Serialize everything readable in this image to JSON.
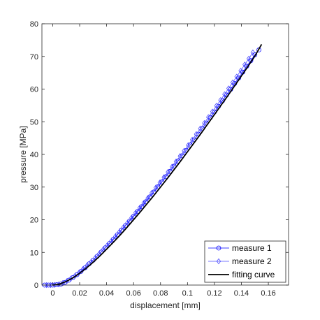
{
  "chart_data": {
    "type": "line",
    "xlabel": "displacement [mm]",
    "ylabel": "pressure [MPa]",
    "xlim": [
      -0.008,
      0.175
    ],
    "ylim": [
      0,
      80
    ],
    "x_ticks": [
      0,
      0.02,
      0.04,
      0.06,
      0.08,
      0.1,
      0.12,
      0.14,
      0.16
    ],
    "x_tick_labels": [
      "0",
      "0.02",
      "0.04",
      "0.06",
      "0.08",
      "0.1",
      "0.12",
      "0.14",
      "0.16"
    ],
    "y_ticks": [
      0,
      10,
      20,
      30,
      40,
      50,
      60,
      70,
      80
    ],
    "y_tick_labels": [
      "0",
      "10",
      "20",
      "30",
      "40",
      "50",
      "60",
      "70",
      "80"
    ],
    "grid": false,
    "legend_position": "bottom-right",
    "series": [
      {
        "name": "measure 1",
        "marker": "circle",
        "color": "#0000ff",
        "x": [
          -0.006,
          -0.003,
          0,
          0.003,
          0.006,
          0.009,
          0.012,
          0.015,
          0.018,
          0.021,
          0.024,
          0.027,
          0.03,
          0.033,
          0.036,
          0.039,
          0.042,
          0.045,
          0.048,
          0.051,
          0.054,
          0.057,
          0.06,
          0.063,
          0.066,
          0.069,
          0.072,
          0.075,
          0.078,
          0.081,
          0.084,
          0.087,
          0.09,
          0.093,
          0.096,
          0.099,
          0.102,
          0.105,
          0.108,
          0.111,
          0.114,
          0.117,
          0.12,
          0.123,
          0.126,
          0.129,
          0.132,
          0.135,
          0.138,
          0.141,
          0.144,
          0.147,
          0.15,
          0.153
        ],
        "y": [
          0,
          0,
          0,
          0.1,
          0.3,
          0.8,
          1.5,
          2.3,
          3.2,
          4.2,
          5.3,
          6.5,
          7.6,
          8.8,
          10.1,
          11.4,
          12.7,
          14.0,
          15.4,
          16.8,
          18.2,
          19.6,
          21.0,
          22.5,
          24.0,
          25.5,
          27.0,
          28.5,
          30.1,
          31.6,
          33.2,
          34.8,
          36.4,
          38.0,
          39.6,
          41.2,
          42.9,
          44.5,
          46.2,
          47.9,
          49.6,
          51.3,
          53.0,
          54.7,
          56.4,
          58.2,
          59.9,
          61.7,
          63.4,
          65.2,
          67.0,
          68.7,
          70.5,
          72.0
        ]
      },
      {
        "name": "measure 2",
        "marker": "diamond",
        "color": "#4d4dff",
        "x": [
          -0.0045,
          -0.0015,
          0.0015,
          0.0045,
          0.0075,
          0.0105,
          0.0135,
          0.0165,
          0.0195,
          0.0225,
          0.0255,
          0.0285,
          0.0315,
          0.0345,
          0.0375,
          0.0405,
          0.0435,
          0.0465,
          0.0495,
          0.0525,
          0.0555,
          0.0585,
          0.0615,
          0.0645,
          0.0675,
          0.0705,
          0.0735,
          0.0765,
          0.0795,
          0.0825,
          0.0855,
          0.0885,
          0.0915,
          0.0945,
          0.0975,
          0.1005,
          0.1035,
          0.1065,
          0.1095,
          0.1125,
          0.1155,
          0.1185,
          0.1215,
          0.1245,
          0.1275,
          0.1305,
          0.1335,
          0.1365,
          0.1395,
          0.1425,
          0.1455,
          0.1485
        ],
        "y": [
          0,
          0,
          0.05,
          0.2,
          0.6,
          1.2,
          2.0,
          2.8,
          3.8,
          4.9,
          6.0,
          7.1,
          8.3,
          9.6,
          10.9,
          12.2,
          13.5,
          14.9,
          16.3,
          17.7,
          19.1,
          20.6,
          22.1,
          23.6,
          25.1,
          26.6,
          28.2,
          29.8,
          31.4,
          33.0,
          34.6,
          36.2,
          37.8,
          39.5,
          41.1,
          42.8,
          44.5,
          46.2,
          47.9,
          49.6,
          51.4,
          53.1,
          54.9,
          56.6,
          58.4,
          60.2,
          62.0,
          63.8,
          65.6,
          67.5,
          69.3,
          71.2
        ]
      },
      {
        "name": "fitting curve",
        "marker": "none",
        "color": "#000000",
        "x": [
          0,
          0.005,
          0.01,
          0.015,
          0.02,
          0.025,
          0.03,
          0.035,
          0.04,
          0.045,
          0.05,
          0.055,
          0.06,
          0.065,
          0.07,
          0.075,
          0.08,
          0.085,
          0.09,
          0.095,
          0.1,
          0.105,
          0.11,
          0.115,
          0.12,
          0.125,
          0.13,
          0.135,
          0.14,
          0.145,
          0.15,
          0.155
        ],
        "y": [
          0,
          0.3,
          1.1,
          2.2,
          3.6,
          5.2,
          7.0,
          8.9,
          11.0,
          13.1,
          15.3,
          17.6,
          20.0,
          22.4,
          24.9,
          27.4,
          30.0,
          32.6,
          35.3,
          38.0,
          40.8,
          43.6,
          46.4,
          49.3,
          52.2,
          55.1,
          58.0,
          61.0,
          64.0,
          67.0,
          70.1,
          73.7
        ]
      }
    ]
  }
}
